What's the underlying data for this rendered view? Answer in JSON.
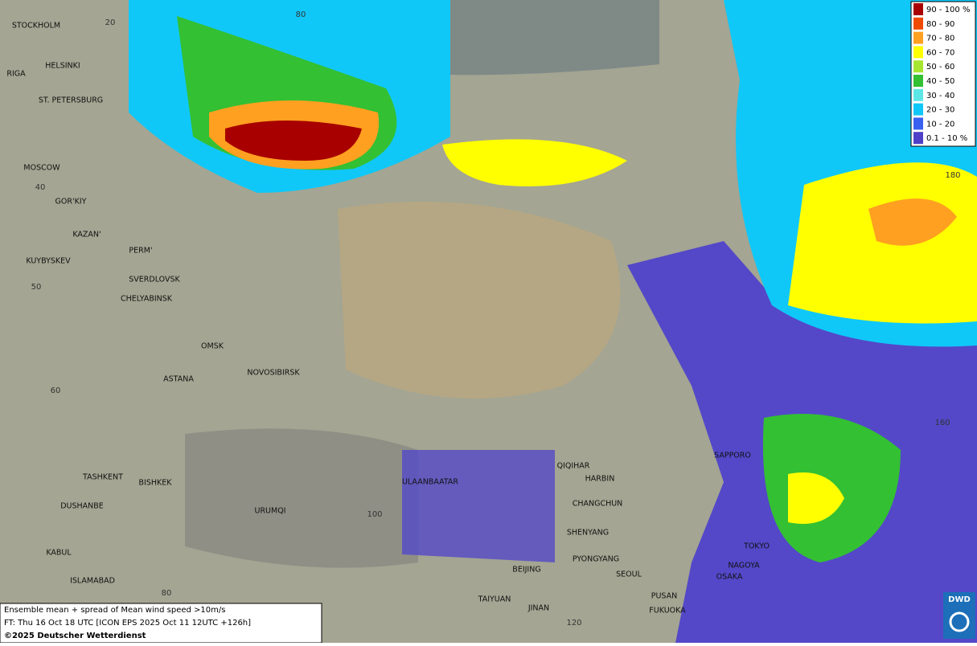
{
  "legend": [
    {
      "label": "90 - 100 %",
      "color": "#a80000"
    },
    {
      "label": "80 - 90",
      "color": "#f04a00"
    },
    {
      "label": "70 - 80",
      "color": "#ffa020"
    },
    {
      "label": "60 - 70",
      "color": "#ffff00"
    },
    {
      "label": "50 - 60",
      "color": "#a6e630"
    },
    {
      "label": "40 - 50",
      "color": "#33c033"
    },
    {
      "label": "30 - 40",
      "color": "#5ee6e6"
    },
    {
      "label": "20 - 30",
      "color": "#10c8f8"
    },
    {
      "label": "10 - 20",
      "color": "#3a60f0"
    },
    {
      "label": "0.1 - 10 %",
      "color": "#5040c8"
    }
  ],
  "cities": [
    "STOCKHOLM",
    "HELSINKI",
    "RIGA",
    "ST. PETERSBURG",
    "MOSCOW",
    "GOR'KIY",
    "KAZAN'",
    "PERM'",
    "KUYBYSKEV",
    "SVERDLOVSK",
    "CHELYABINSK",
    "OMSK",
    "NOVOSIBIRSK",
    "ASTANA",
    "TASHKENT",
    "BISHKEK",
    "DUSHANBE",
    "URUMQI",
    "KABUL",
    "ISLAMABAD",
    "ULAANBAATAR",
    "QIQIHAR",
    "HARBIN",
    "CHANGCHUN",
    "SHENYANG",
    "PYONGYANG",
    "SEOUL",
    "BEIJING",
    "TAIYUAN",
    "JINAN",
    "PUSAN",
    "FUKUOKA",
    "SAPPORO",
    "TOKYO",
    "NAGOYA",
    "OSAKA"
  ],
  "graticule_labels": [
    "20",
    "80",
    "40",
    "50",
    "60",
    "100",
    "80",
    "120",
    "160",
    "180"
  ],
  "info": {
    "line1": "Ensemble mean + spread of Mean wind speed >10m/s",
    "line2": "FT: Thu 16 Oct 18 UTC [ICON EPS 2025 Oct 11 12UTC +126h]",
    "copyright": "©2025 Deutscher Wetterdienst"
  },
  "logo": "DWD"
}
